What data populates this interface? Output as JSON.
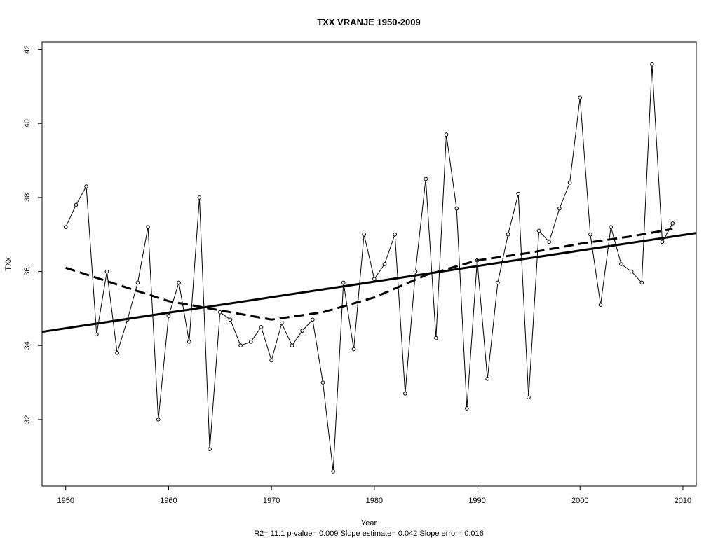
{
  "chart_data": {
    "type": "line",
    "title": "TXX   VRANJE 1950-2009",
    "xlabel": "Year",
    "ylabel": "TXx",
    "subtitle": "R2= 11.1  p-value= 0.009  Slope estimate= 0.042  Slope error= 0.016",
    "xlim": [
      1947.7,
      2011.3
    ],
    "ylim": [
      30.2,
      42.2
    ],
    "x_ticks": [
      1950,
      1960,
      1970,
      1980,
      1990,
      2000,
      2010
    ],
    "y_ticks": [
      32,
      34,
      36,
      38,
      40,
      42
    ],
    "grid": false,
    "series": [
      {
        "style": "line-with-points",
        "x": [
          1950,
          1951,
          1952,
          1953,
          1954,
          1955,
          1956,
          1957,
          1958,
          1959,
          1960,
          1961,
          1962,
          1963,
          1964,
          1965,
          1966,
          1967,
          1968,
          1969,
          1970,
          1971,
          1972,
          1973,
          1974,
          1975,
          1976,
          1977,
          1978,
          1979,
          1980,
          1981,
          1982,
          1983,
          1984,
          1985,
          1986,
          1987,
          1988,
          1989,
          1990,
          1991,
          1992,
          1993,
          1994,
          1995,
          1996,
          1997,
          1998,
          1999,
          2000,
          2001,
          2002,
          2003,
          2004,
          2005,
          2006,
          2007,
          2008,
          2009
        ],
        "values": [
          37.2,
          37.8,
          38.3,
          34.3,
          36.0,
          33.8,
          34.7,
          35.7,
          37.2,
          32.0,
          34.8,
          35.7,
          34.1,
          38.0,
          31.2,
          34.9,
          34.7,
          34.0,
          34.1,
          34.5,
          33.6,
          34.6,
          34.0,
          34.4,
          34.7,
          33.0,
          30.6,
          35.7,
          33.9,
          37.0,
          35.8,
          36.2,
          37.0,
          32.7,
          36.0,
          38.5,
          34.2,
          39.7,
          37.7,
          32.3,
          36.3,
          33.1,
          35.7,
          37.0,
          38.1,
          32.6,
          37.1,
          36.8,
          37.7,
          38.4,
          40.7,
          37.0,
          35.1,
          37.2,
          36.2,
          36.0,
          35.7,
          41.6,
          36.8,
          37.3
        ]
      },
      {
        "style": "solid-trend",
        "x": [
          1947.7,
          2011.3
        ],
        "values": [
          34.37,
          37.04
        ]
      },
      {
        "style": "dashed-smooth",
        "x": [
          1950,
          1955,
          1960,
          1965,
          1970,
          1975,
          1980,
          1985,
          1990,
          1995,
          2000,
          2005,
          2009
        ],
        "values": [
          36.1,
          35.65,
          35.2,
          34.95,
          34.7,
          34.9,
          35.3,
          35.9,
          36.3,
          36.5,
          36.75,
          36.95,
          37.15
        ]
      }
    ]
  }
}
